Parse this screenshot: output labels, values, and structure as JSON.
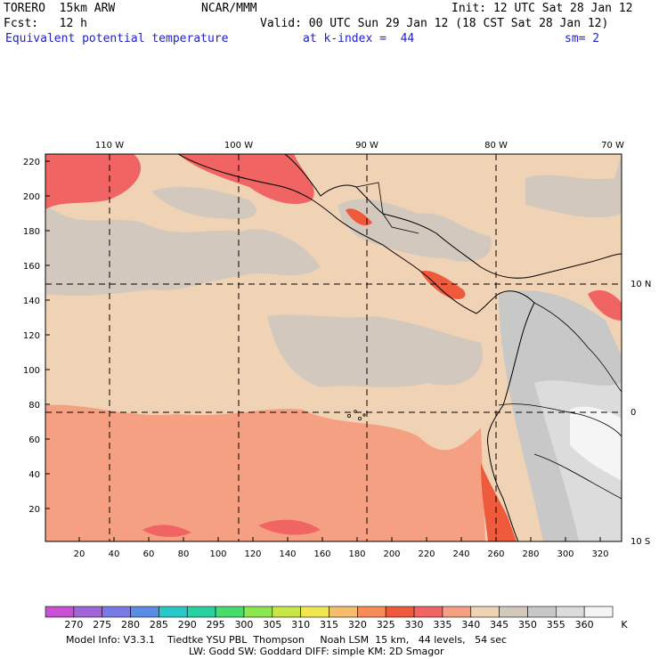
{
  "header": {
    "model": "TORERO  15km ARW",
    "center": "NCAR/MMM",
    "init": "Init: 12 UTC Sat 28 Jan 12",
    "fcst": "Fcst:   12 h",
    "valid": "Valid: 00 UTC Sun 29 Jan 12 (18 CST Sat 28 Jan 12)",
    "field": "Equivalent potential temperature",
    "level": "at k-index =  44",
    "smooth": "sm= 2"
  },
  "map": {
    "lon_labels": [
      "110 W",
      "100 W",
      "90 W",
      "80 W",
      "70 W"
    ],
    "lat_labels": [
      "10 N",
      "0",
      "10 S"
    ],
    "y_ticks": [
      "220",
      "200",
      "180",
      "160",
      "140",
      "120",
      "100",
      "80",
      "60",
      "40",
      "20"
    ],
    "x_ticks": [
      "20",
      "40",
      "60",
      "80",
      "100",
      "120",
      "140",
      "160",
      "180",
      "200",
      "220",
      "240",
      "260",
      "280",
      "300",
      "320"
    ]
  },
  "colorbar": {
    "unit": "K",
    "levels": [
      "270",
      "275",
      "280",
      "285",
      "290",
      "295",
      "300",
      "305",
      "310",
      "315",
      "320",
      "325",
      "330",
      "335",
      "340",
      "345",
      "350",
      "355",
      "360"
    ],
    "colors": [
      "#c850d2",
      "#a066d8",
      "#7a7ae6",
      "#5a8ce6",
      "#28c8c8",
      "#28d2a0",
      "#46dc6e",
      "#8ce650",
      "#c8e646",
      "#f0e650",
      "#f5be6e",
      "#f58c5a",
      "#f05a3c",
      "#f06464",
      "#f5a082",
      "#f0d2b4",
      "#d2c8be",
      "#c8c8c8",
      "#dcdcdc",
      "#f5f5f5"
    ]
  },
  "footer": {
    "line1": "Model Info: V3.3.1    Tiedtke YSU PBL  Thompson     Noah LSM  15 km,   44 levels,   54 sec",
    "line2": "LW: Godd SW: Goddard DIFF: simple KM: 2D Smagor"
  }
}
